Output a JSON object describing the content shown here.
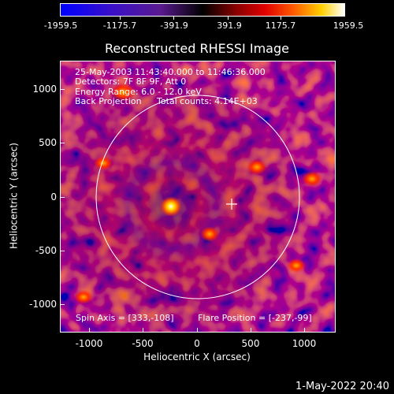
{
  "colorbar": {
    "tick_labels": [
      "-1959.5",
      "-1175.7",
      "-391.9",
      "391.9",
      "1175.7",
      "1959.5"
    ]
  },
  "title": "Reconstructed RHESSI Image",
  "info": {
    "line1": "25-May-2003 11:43:40.000 to 11:46:36.000",
    "line2": "Detectors: 7F 8F 9F, Att 0",
    "line3": "Energy Range: 6.0 - 12.0 keV",
    "line4_left": "Back Projection",
    "line4_right": "Total counts: 4.14E+03",
    "spin_axis": "Spin Axis = [333,-108]",
    "flare_position": "Flare Position = [-237,-99]"
  },
  "axes": {
    "xlabel": "Heliocentric X (arcsec)",
    "ylabel": "Heliocentric Y (arcsec)",
    "x_ticks": [
      "-1000",
      "-500",
      "0",
      "500",
      "1000"
    ],
    "y_ticks": [
      "1000",
      "500",
      "0",
      "-500",
      "-1000"
    ]
  },
  "timestamp": "1-May-2022 20:40",
  "colors": {
    "background": "#000000",
    "foreground": "#ffffff"
  }
}
